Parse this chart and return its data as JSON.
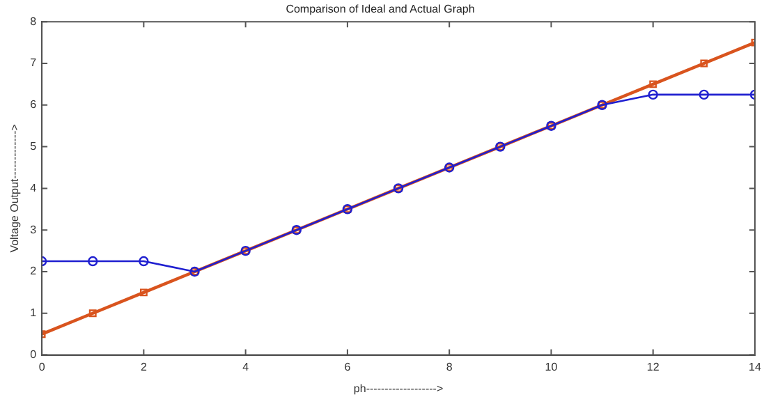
{
  "chart_data": {
    "type": "line",
    "title": "Comparison of Ideal and Actual Graph",
    "xlabel": "ph------------------->",
    "ylabel": "Voltage Output------------->",
    "x": [
      0,
      1,
      2,
      3,
      4,
      5,
      6,
      7,
      8,
      9,
      10,
      11,
      12,
      13,
      14
    ],
    "series": [
      {
        "color": "#d9541e",
        "marker": "square",
        "values": [
          0.5,
          1,
          1.5,
          2,
          2.5,
          3,
          3.5,
          4,
          4.5,
          5,
          5.5,
          6,
          6.5,
          7,
          7.5
        ]
      },
      {
        "color": "#1f1fd0",
        "marker": "circle",
        "values": [
          2.25,
          2.25,
          2.25,
          2,
          2.5,
          3,
          3.5,
          4,
          4.5,
          5,
          5.5,
          6,
          6.25,
          6.25,
          6.25
        ]
      }
    ],
    "xlim": [
      0,
      14
    ],
    "xticks": [
      0,
      2,
      4,
      6,
      8,
      10,
      12,
      14
    ],
    "ylim": [
      0,
      8
    ],
    "yticks": [
      0,
      1,
      2,
      3,
      4,
      5,
      6,
      7,
      8
    ],
    "grid": false,
    "legend": false,
    "line_style": "solid"
  }
}
